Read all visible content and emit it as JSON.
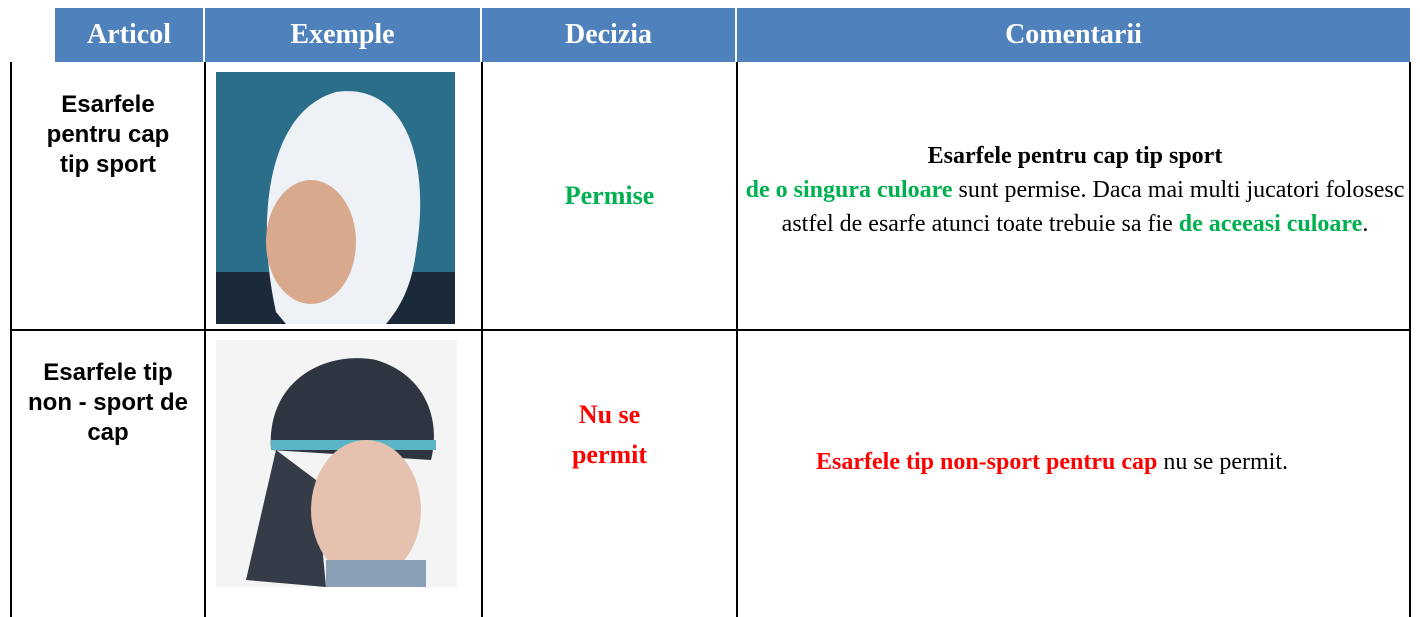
{
  "header": {
    "columns": [
      "Articol",
      "Exemple",
      "Decizia",
      "Comentarii"
    ]
  },
  "rows": [
    {
      "article": "Esarfele pentru cap tip sport",
      "decision": "Permise",
      "comment": [
        "Esarfele pentru cap tip sport",
        "de o singura culoare",
        " sunt permise. Daca mai multi jucatori folosesc astfel de esarfe atunci toate trebuie sa fie ",
        "de aceeasi culoare",
        "."
      ]
    },
    {
      "article": "Esarfele tip non - sport de cap",
      "decision": "Nu se permit",
      "comment": [
        "Esarfele tip non-sport pentru cap",
        " nu se permit."
      ]
    }
  ]
}
